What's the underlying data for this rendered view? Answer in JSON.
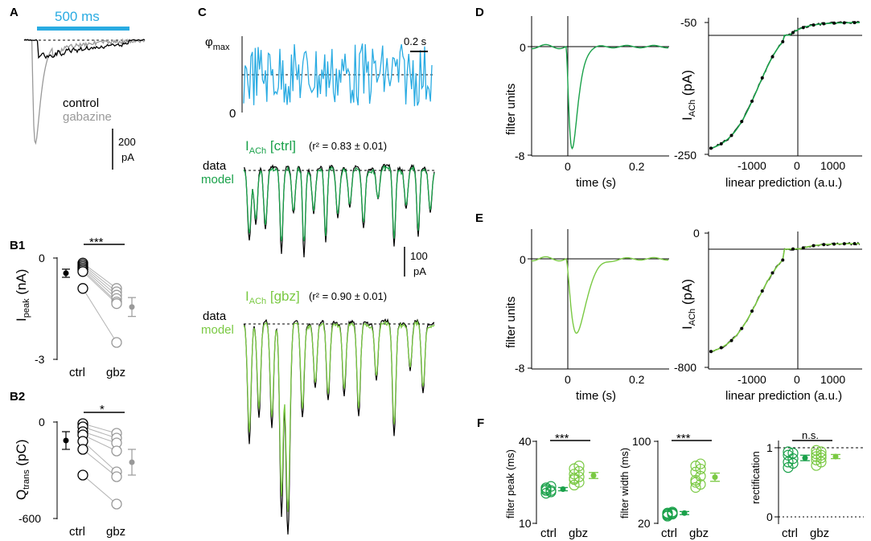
{
  "colors": {
    "ctrl": "#1aa14a",
    "gbz": "#7ac943",
    "stim": "#29abe2",
    "gabazine": "#999999",
    "black": "#000000"
  },
  "panels": {
    "A": {
      "letter": "A",
      "stim_label": "500 ms",
      "legend_ctrl": "control",
      "legend_gbz": "gabazine",
      "scale_value": "200",
      "scale_unit": "pA"
    },
    "B1": {
      "letter": "B1",
      "sig": "***",
      "xlabel_ctrl": "ctrl",
      "xlabel_gbz": "gbz"
    },
    "B2": {
      "letter": "B2",
      "sig": "*",
      "xlabel_ctrl": "ctrl",
      "xlabel_gbz": "gbz"
    },
    "C": {
      "letter": "C",
      "phi_label": "φ",
      "phi_sub": "max",
      "zero_label": "0",
      "time_scale": "0.2 s",
      "ctrl_title_main": "I",
      "ctrl_title_sub": "ACh",
      "ctrl_title_tag": " [ctrl]",
      "ctrl_r2": "(r² = 0.83 ± 0.01)",
      "gbz_title_main": "I",
      "gbz_title_sub": "ACh",
      "gbz_title_tag": " [gbz]",
      "gbz_r2": "(r² = 0.90 ± 0.01)",
      "data_label": "data",
      "model_label": "model",
      "scale_value": "100",
      "scale_unit": "pA"
    },
    "D": {
      "letter": "D",
      "filter_ylabel": "filter units",
      "filter_xlabel": "time (s)",
      "nl_ylabel_main": "I",
      "nl_ylabel_sub": "ACh",
      "nl_ylabel_unit": " (pA)",
      "nl_xlabel": "linear prediction (a.u.)"
    },
    "E": {
      "letter": "E",
      "filter_ylabel": "filter units",
      "filter_xlabel": "time (s)",
      "nl_ylabel_main": "I",
      "nl_ylabel_sub": "ACh",
      "nl_ylabel_unit": " (pA)",
      "nl_xlabel": "linear prediction (a.u.)"
    },
    "F": {
      "letter": "F",
      "sig_peak": "***",
      "sig_width": "***",
      "sig_rect": "n.s.",
      "xlabel_ctrl": "ctrl",
      "xlabel_gbz": "gbz"
    }
  },
  "chart_data": [
    {
      "id": "B1",
      "type": "scatter",
      "ylabel_main": "I",
      "ylabel_sub": "peak",
      "ylabel_unit": " (nA)",
      "ylim": [
        -3,
        0
      ],
      "yticks": [
        "0",
        "-3"
      ],
      "categories": [
        "ctrl",
        "gbz"
      ],
      "pairs": [
        [
          -0.15,
          -0.9
        ],
        [
          -0.2,
          -1.0
        ],
        [
          -0.25,
          -1.1
        ],
        [
          -0.3,
          -1.2
        ],
        [
          -0.35,
          -1.3
        ],
        [
          -0.4,
          -1.35
        ],
        [
          -0.9,
          -2.5
        ]
      ],
      "mean_ctrl": -0.45,
      "sem_ctrl": 0.12,
      "mean_gbz": -1.45,
      "sem_gbz": 0.28
    },
    {
      "id": "B2",
      "type": "scatter",
      "ylabel_main": "Q",
      "ylabel_sub": "trans",
      "ylabel_unit": " (pC)",
      "ylim": [
        -600,
        0
      ],
      "yticks": [
        "0",
        "-600"
      ],
      "categories": [
        "ctrl",
        "gbz"
      ],
      "pairs": [
        [
          -10,
          -70
        ],
        [
          -30,
          -100
        ],
        [
          -60,
          -130
        ],
        [
          -80,
          -180
        ],
        [
          -120,
          -310
        ],
        [
          -170,
          -340
        ],
        [
          -330,
          -510
        ]
      ],
      "mean_ctrl": -115,
      "sem_ctrl": 55,
      "mean_gbz": -250,
      "sem_gbz": 80
    },
    {
      "id": "D-filter",
      "type": "line",
      "yticks": [
        "0",
        "-8"
      ],
      "xticks": [
        "0",
        "0.2"
      ],
      "xlim": [
        -0.1,
        0.3
      ],
      "ylim": [
        -8,
        1.5
      ],
      "peak_time": 0.018,
      "peak_value": -7.6
    },
    {
      "id": "D-nonlinearity",
      "type": "line",
      "yticks": [
        "-50",
        "-250"
      ],
      "xticks": [
        "-1000",
        "0",
        "1000"
      ],
      "xlim": [
        -1700,
        1800
      ],
      "ylim": [
        -250,
        -50
      ],
      "asymptote_high": -50,
      "asymptote_low": -250
    },
    {
      "id": "E-filter",
      "type": "line",
      "yticks": [
        "0",
        "-8"
      ],
      "xticks": [
        "0",
        "0.2"
      ],
      "xlim": [
        -0.1,
        0.3
      ],
      "ylim": [
        -8,
        1.5
      ],
      "peak_time": 0.03,
      "peak_value": -5.5
    },
    {
      "id": "E-nonlinearity",
      "type": "line",
      "yticks": [
        "0",
        "-800"
      ],
      "xticks": [
        "-1000",
        "0",
        "1000"
      ],
      "xlim": [
        -1700,
        1800
      ],
      "ylim": [
        -800,
        0
      ],
      "asymptote_high": -60,
      "asymptote_low": -800
    },
    {
      "id": "F-peak",
      "type": "scatter",
      "ylabel": "filter peak (ms)",
      "yticks": [
        "40",
        "10"
      ],
      "ylim": [
        10,
        40
      ],
      "ctrl": [
        21,
        22,
        23,
        23.5,
        22.5,
        21.5,
        22
      ],
      "gbz": [
        24,
        25,
        26,
        27,
        28,
        29,
        30,
        31,
        26.5
      ],
      "mean_ctrl": 22.5,
      "sem_ctrl": 0.6,
      "mean_gbz": 27.5,
      "sem_gbz": 1.1
    },
    {
      "id": "F-width",
      "type": "scatter",
      "ylabel": "filter width (ms)",
      "yticks": [
        "100",
        "20"
      ],
      "ylim": [
        20,
        100
      ],
      "ctrl": [
        27,
        29,
        30,
        31,
        28,
        30,
        29
      ],
      "gbz": [
        55,
        58,
        62,
        66,
        70,
        73,
        76,
        78,
        60
      ],
      "mean_ctrl": 30,
      "sem_ctrl": 1.5,
      "mean_gbz": 65,
      "sem_gbz": 4
    },
    {
      "id": "F-rect",
      "type": "scatter",
      "ylabel": "rectification",
      "yticks": [
        "1",
        "0"
      ],
      "ylim": [
        0,
        1.1
      ],
      "ctrl": [
        0.95,
        0.93,
        0.9,
        0.85,
        0.8,
        0.78,
        0.72
      ],
      "gbz": [
        0.97,
        0.95,
        0.92,
        0.9,
        0.88,
        0.86,
        0.83,
        0.8,
        0.75
      ],
      "mean_ctrl": 0.86,
      "sem_ctrl": 0.04,
      "mean_gbz": 0.88,
      "sem_gbz": 0.03
    }
  ]
}
